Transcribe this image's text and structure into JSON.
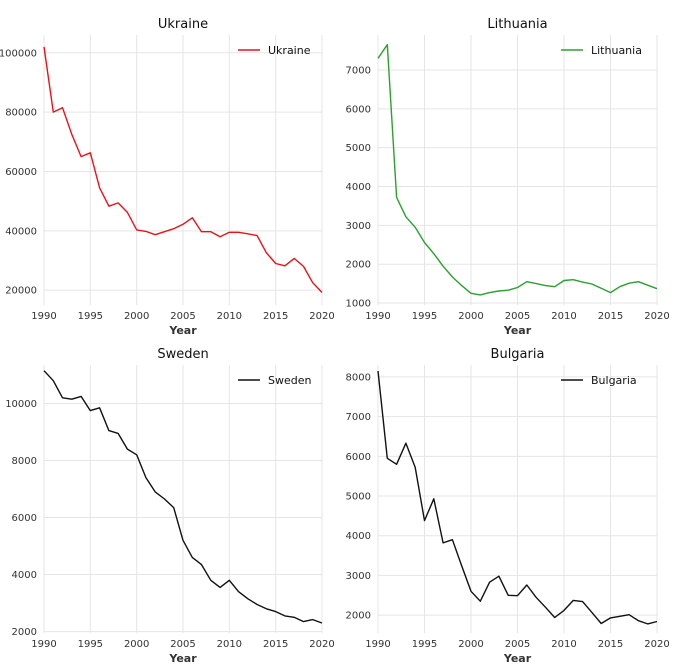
{
  "chart_data": [
    {
      "type": "line",
      "title": "Ukraine",
      "xlabel": "Year",
      "ylabel": "",
      "xlim": [
        1990,
        2020
      ],
      "ylim": [
        15000,
        106000
      ],
      "xticks": [
        1990,
        1995,
        2000,
        2005,
        2010,
        2015,
        2020
      ],
      "yticks": [
        20000,
        40000,
        60000,
        80000,
        100000
      ],
      "grid": true,
      "legend_position": "top-right",
      "x": [
        1990,
        1991,
        1992,
        1993,
        1994,
        1995,
        1996,
        1997,
        1998,
        1999,
        2000,
        2001,
        2002,
        2003,
        2004,
        2005,
        2006,
        2007,
        2008,
        2009,
        2010,
        2011,
        2012,
        2013,
        2014,
        2015,
        2016,
        2017,
        2018,
        2019,
        2020
      ],
      "series": [
        {
          "name": "Ukraine",
          "color": "#e8121a",
          "values": [
            102000,
            80000,
            81500,
            72500,
            65000,
            66300,
            54500,
            48300,
            49400,
            46200,
            40300,
            39800,
            38700,
            39700,
            40700,
            42200,
            44400,
            39700,
            39700,
            38000,
            39500,
            39500,
            39000,
            38400,
            32600,
            29000,
            28200,
            30700,
            28000,
            22500,
            19200
          ]
        }
      ]
    },
    {
      "type": "line",
      "title": "Lithuania",
      "xlabel": "Year",
      "ylabel": "",
      "xlim": [
        1990,
        2020
      ],
      "ylim": [
        950,
        7900
      ],
      "xticks": [
        1990,
        1995,
        2000,
        2005,
        2010,
        2015,
        2020
      ],
      "yticks": [
        1000,
        2000,
        3000,
        4000,
        5000,
        6000,
        7000
      ],
      "grid": true,
      "legend_position": "top-right",
      "x": [
        1990,
        1991,
        1992,
        1993,
        1994,
        1995,
        1996,
        1997,
        1998,
        1999,
        2000,
        2001,
        2002,
        2003,
        2004,
        2005,
        2006,
        2007,
        2008,
        2009,
        2010,
        2011,
        2012,
        2013,
        2014,
        2015,
        2016,
        2017,
        2018,
        2019,
        2020
      ],
      "series": [
        {
          "name": "Lithuania",
          "color": "#2ca02c",
          "values": [
            7300,
            7650,
            3720,
            3220,
            2950,
            2560,
            2270,
            1950,
            1670,
            1450,
            1250,
            1210,
            1270,
            1310,
            1330,
            1400,
            1550,
            1500,
            1450,
            1420,
            1580,
            1600,
            1540,
            1490,
            1380,
            1270,
            1420,
            1510,
            1550,
            1460,
            1370
          ]
        }
      ]
    },
    {
      "type": "line",
      "title": "Sweden",
      "xlabel": "Year",
      "ylabel": "",
      "xlim": [
        1990,
        2020
      ],
      "ylim": [
        1950,
        11350
      ],
      "xticks": [
        1990,
        1995,
        2000,
        2005,
        2010,
        2015,
        2020
      ],
      "yticks": [
        2000,
        4000,
        6000,
        8000,
        10000
      ],
      "grid": true,
      "legend_position": "top-right",
      "x": [
        1990,
        1991,
        1992,
        1993,
        1994,
        1995,
        1996,
        1997,
        1998,
        1999,
        2000,
        2001,
        2002,
        2003,
        2004,
        2005,
        2006,
        2007,
        2008,
        2009,
        2010,
        2011,
        2012,
        2013,
        2014,
        2015,
        2016,
        2017,
        2018,
        2019,
        2020
      ],
      "series": [
        {
          "name": "Sweden",
          "color": "#111111",
          "values": [
            11150,
            10800,
            10200,
            10150,
            10250,
            9750,
            9850,
            9050,
            8950,
            8400,
            8200,
            7400,
            6900,
            6650,
            6350,
            5200,
            4600,
            4350,
            3800,
            3550,
            3800,
            3400,
            3150,
            2950,
            2800,
            2700,
            2550,
            2500,
            2350,
            2420,
            2300
          ]
        }
      ]
    },
    {
      "type": "line",
      "title": "Bulgaria",
      "xlabel": "Year",
      "ylabel": "",
      "xlim": [
        1990,
        2020
      ],
      "ylim": [
        1550,
        8300
      ],
      "xticks": [
        1990,
        1995,
        2000,
        2005,
        2010,
        2015,
        2020
      ],
      "yticks": [
        2000,
        3000,
        4000,
        5000,
        6000,
        7000,
        8000
      ],
      "grid": true,
      "legend_position": "top-right",
      "x": [
        1990,
        1991,
        1992,
        1993,
        1994,
        1995,
        1996,
        1997,
        1998,
        1999,
        2000,
        2001,
        2002,
        2003,
        2004,
        2005,
        2006,
        2007,
        2008,
        2009,
        2010,
        2011,
        2012,
        2013,
        2014,
        2015,
        2016,
        2017,
        2018,
        2019,
        2020
      ],
      "series": [
        {
          "name": "Bulgaria",
          "color": "#111111",
          "values": [
            8150,
            5950,
            5800,
            6330,
            5720,
            4380,
            4930,
            3820,
            3900,
            3240,
            2600,
            2350,
            2830,
            2980,
            2500,
            2490,
            2760,
            2450,
            2200,
            1940,
            2120,
            2370,
            2340,
            2070,
            1790,
            1930,
            1970,
            2010,
            1860,
            1780,
            1840
          ]
        }
      ]
    }
  ]
}
